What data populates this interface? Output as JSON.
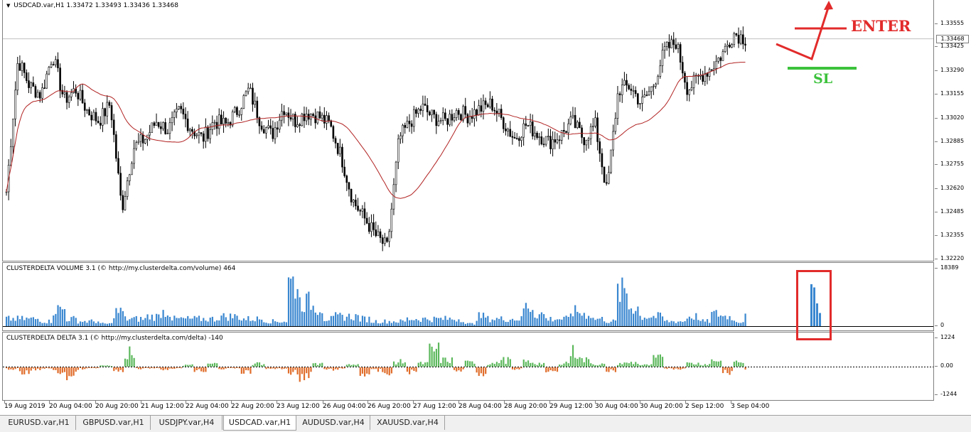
{
  "symbol_title": "USDCAD.var,H1  1.33472 1.33493 1.33436 1.33468",
  "current_price": "1.33468",
  "price_scale": [
    "1.33555",
    "1.33425",
    "1.33290",
    "1.33155",
    "1.33020",
    "1.32885",
    "1.32755",
    "1.32620",
    "1.32485",
    "1.32355",
    "1.32220"
  ],
  "volume_indicator": {
    "title": "CLUSTERDELTA VOLUME 3.1 (© http://my.clusterdelta.com/volume) 464",
    "scale_max": "18389",
    "scale_min": "0"
  },
  "delta_indicator": {
    "title": "CLUSTERDELTA DELTA 3.1 (© http://my.clusterdelta.com/delta) -140",
    "scale_top": "1224",
    "scale_mid": "0.00",
    "scale_mid2": "-0.00",
    "scale_bottom": "-1244"
  },
  "time_axis": [
    "19 Aug 2019",
    "20 Aug 04:00",
    "20 Aug 20:00",
    "21 Aug 12:00",
    "22 Aug 04:00",
    "22 Aug 20:00",
    "23 Aug 12:00",
    "26 Aug 04:00",
    "26 Aug 20:00",
    "27 Aug 12:00",
    "28 Aug 04:00",
    "28 Aug 20:00",
    "29 Aug 12:00",
    "30 Aug 04:00",
    "30 Aug 20:00",
    "2 Sep 12:00",
    "3 Sep 04:00"
  ],
  "annotations": {
    "enter_label": "ENTER",
    "sl_label": "SL"
  },
  "tabs": [
    {
      "label": "EURUSD.var,H1",
      "active": false
    },
    {
      "label": "GBPUSD.var,H1",
      "active": false
    },
    {
      "label": "USDJPY.var,H4",
      "active": false
    },
    {
      "label": "USDCAD.var,H1",
      "active": true
    },
    {
      "label": "AUDUSD.var,H4",
      "active": false
    },
    {
      "label": "XAUUSD.var,H4",
      "active": false
    }
  ],
  "colors": {
    "candle": "#000000",
    "moving_average": "#b22222",
    "volume_bar": "#3a87d0",
    "delta_positive": "#5cb85c",
    "delta_negative": "#e06d2b",
    "annotation_red": "#e22b2b",
    "annotation_green": "#3cc23c"
  },
  "chart_data": {
    "type": "candlestick",
    "title": "USDCAD.var,H1",
    "ylim": [
      1.3222,
      1.33555
    ],
    "anchors": {
      "close": [
        [
          "19 Aug 2019",
          1.326
        ],
        [
          null,
          1.3335
        ],
        [
          null,
          1.332
        ],
        [
          null,
          1.3315
        ],
        [
          "20 Aug 04:00",
          1.3338
        ],
        [
          null,
          1.3312
        ],
        [
          null,
          1.3318
        ],
        [
          null,
          1.3306
        ],
        [
          "20 Aug 20:00",
          1.33
        ],
        [
          null,
          1.331
        ],
        [
          null,
          1.325
        ],
        [
          null,
          1.3285
        ],
        [
          "21 Aug 12:00",
          1.329
        ],
        [
          null,
          1.33
        ],
        [
          null,
          1.3295
        ],
        [
          null,
          1.3306
        ],
        [
          "22 Aug 04:00",
          1.3296
        ],
        [
          null,
          1.329
        ],
        [
          null,
          1.33
        ],
        [
          null,
          1.3298
        ],
        [
          "22 Aug 20:00",
          1.3306
        ],
        [
          null,
          1.3318
        ],
        [
          null,
          1.33
        ],
        [
          null,
          1.3292
        ],
        [
          "23 Aug 12:00",
          1.3308
        ],
        [
          null,
          1.33
        ],
        [
          null,
          1.3305
        ],
        [
          null,
          1.3303
        ],
        [
          "26 Aug 04:00",
          1.3298
        ],
        [
          null,
          1.328
        ],
        [
          null,
          1.3255
        ],
        [
          null,
          1.3245
        ],
        [
          "26 Aug 20:00",
          1.3235
        ],
        [
          null,
          1.3228
        ],
        [
          null,
          1.329
        ],
        [
          null,
          1.33
        ],
        [
          "27 Aug 12:00",
          1.3308
        ],
        [
          null,
          1.3302
        ],
        [
          null,
          1.33
        ],
        [
          null,
          1.3306
        ],
        [
          "28 Aug 04:00",
          1.3303
        ],
        [
          null,
          1.3307
        ],
        [
          null,
          1.331
        ],
        [
          null,
          1.33
        ],
        [
          "28 Aug 20:00",
          1.329
        ],
        [
          null,
          1.3298
        ],
        [
          null,
          1.3293
        ],
        [
          null,
          1.3288
        ],
        [
          "29 Aug 12:00",
          1.3292
        ],
        [
          null,
          1.33
        ],
        [
          null,
          1.329
        ],
        [
          null,
          1.3298
        ],
        [
          "30 Aug 04:00",
          1.326
        ],
        [
          null,
          1.3318
        ],
        [
          null,
          1.332
        ],
        [
          null,
          1.331
        ],
        [
          "30 Aug 20:00",
          1.332
        ],
        [
          null,
          1.334
        ],
        [
          null,
          1.3345
        ],
        [
          null,
          1.3318
        ],
        [
          "2 Sep 12:00",
          1.3325
        ],
        [
          null,
          1.333
        ],
        [
          null,
          1.3338
        ],
        [
          null,
          1.335
        ],
        [
          "3 Sep 04:00",
          1.33468
        ]
      ]
    },
    "volume_series": [
      3,
      3,
      3,
      2,
      7,
      3,
      2,
      2,
      1,
      6,
      3,
      3,
      4,
      6,
      3,
      3,
      3,
      3,
      4,
      4,
      3,
      3,
      2,
      2,
      18,
      10,
      8,
      3,
      4,
      4,
      3,
      2,
      2,
      2,
      3,
      3,
      3,
      3,
      3,
      1,
      4,
      3,
      3,
      3,
      8,
      5,
      3,
      3,
      6,
      5,
      3,
      2,
      14,
      8,
      4,
      4,
      2,
      2,
      4,
      2,
      5,
      4,
      2,
      7
    ],
    "delta_series": [
      -100,
      -400,
      -150,
      -60,
      -300,
      -600,
      -100,
      -50,
      80,
      -200,
      1000,
      -80,
      -50,
      -120,
      -60,
      100,
      -200,
      180,
      -100,
      -50,
      -300,
      200,
      -80,
      -90,
      -300,
      -600,
      200,
      -150,
      -100,
      120,
      -400,
      -200,
      -350,
      300,
      -300,
      200,
      1000,
      400,
      -200,
      250,
      -600,
      200,
      400,
      -100,
      300,
      200,
      -200,
      250,
      900,
      400,
      150,
      -200,
      200,
      250,
      100,
      500,
      -100,
      -150,
      200,
      150,
      400,
      -300,
      300,
      -100
    ]
  }
}
